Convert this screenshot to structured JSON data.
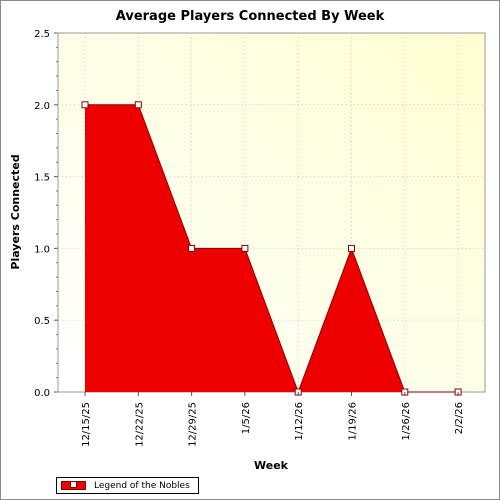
{
  "chart_data": {
    "type": "area",
    "title": "Average Players Connected By Week",
    "xlabel": "Week",
    "ylabel": "Players Connected",
    "categories": [
      "12/15/25",
      "12/22/25",
      "12/29/25",
      "1/5/26",
      "1/12/26",
      "1/19/26",
      "1/26/26",
      "2/2/26"
    ],
    "series": [
      {
        "name": "Legend of the Nobles",
        "values": [
          2.0,
          2.0,
          1.0,
          1.0,
          0.0,
          1.0,
          0.0,
          0.0
        ]
      }
    ],
    "ylim": [
      0,
      2.5
    ],
    "yticks": [
      0,
      0.5,
      1.0,
      1.5,
      2.0,
      2.5
    ],
    "ytick_labels": [
      "0.0",
      "0.5",
      "1.0",
      "1.5",
      "2.0",
      "2.5"
    ],
    "grid": true,
    "legend_position": "bottom-left",
    "colors": {
      "fill": "#ee0000",
      "line": "#880000",
      "plot_bg_top_right": "#fefed0",
      "plot_bg_bottom_left": "#ffffff",
      "grid": "#c8c8c8"
    }
  }
}
